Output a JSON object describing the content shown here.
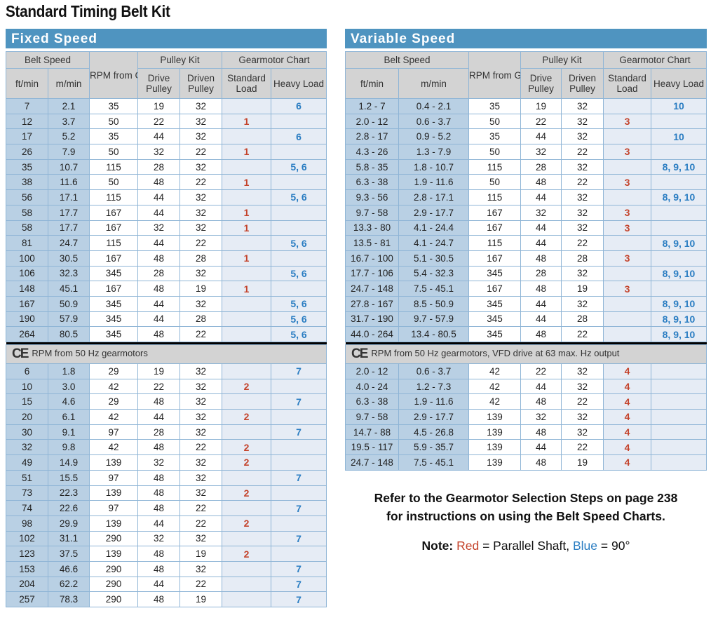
{
  "title": "Standard Timing Belt Kit",
  "colors": {
    "header": "#4f94c0",
    "red": "#c4432b",
    "blue": "#2a7dc2"
  },
  "headers": {
    "belt_speed": "Belt Speed",
    "rpm": "RPM from Gearmotor",
    "pulley_kit": "Pulley Kit",
    "gearmotor_chart": "Gearmotor Chart",
    "ft": "ft/min",
    "m": "m/min",
    "drive": "Drive Pulley",
    "driven": "Driven Pulley",
    "standard": "Standard Load",
    "heavy": "Heavy Load"
  },
  "ce_mark": "CE",
  "fixed": {
    "title": "Fixed Speed",
    "rows": [
      [
        "7",
        "2.1",
        "35",
        "19",
        "32",
        "",
        "6"
      ],
      [
        "12",
        "3.7",
        "50",
        "22",
        "32",
        "1",
        ""
      ],
      [
        "17",
        "5.2",
        "35",
        "44",
        "32",
        "",
        "6"
      ],
      [
        "26",
        "7.9",
        "50",
        "32",
        "22",
        "1",
        ""
      ],
      [
        "35",
        "10.7",
        "115",
        "28",
        "32",
        "",
        "5, 6"
      ],
      [
        "38",
        "11.6",
        "50",
        "48",
        "22",
        "1",
        ""
      ],
      [
        "56",
        "17.1",
        "115",
        "44",
        "32",
        "",
        "5, 6"
      ],
      [
        "58",
        "17.7",
        "167",
        "44",
        "32",
        "1",
        ""
      ],
      [
        "58",
        "17.7",
        "167",
        "32",
        "32",
        "1",
        ""
      ],
      [
        "81",
        "24.7",
        "115",
        "44",
        "22",
        "",
        "5, 6"
      ],
      [
        "100",
        "30.5",
        "167",
        "48",
        "28",
        "1",
        ""
      ],
      [
        "106",
        "32.3",
        "345",
        "28",
        "32",
        "",
        "5, 6"
      ],
      [
        "148",
        "45.1",
        "167",
        "48",
        "19",
        "1",
        ""
      ],
      [
        "167",
        "50.9",
        "345",
        "44",
        "32",
        "",
        "5, 6"
      ],
      [
        "190",
        "57.9",
        "345",
        "44",
        "28",
        "",
        "5, 6"
      ],
      [
        "264",
        "80.5",
        "345",
        "48",
        "22",
        "",
        "5, 6"
      ]
    ],
    "ce_label": "RPM from 50 Hz gearmotors",
    "ce_rows": [
      [
        "6",
        "1.8",
        "29",
        "19",
        "32",
        "",
        "7"
      ],
      [
        "10",
        "3.0",
        "42",
        "22",
        "32",
        "2",
        ""
      ],
      [
        "15",
        "4.6",
        "29",
        "48",
        "32",
        "",
        "7"
      ],
      [
        "20",
        "6.1",
        "42",
        "44",
        "32",
        "2",
        ""
      ],
      [
        "30",
        "9.1",
        "97",
        "28",
        "32",
        "",
        "7"
      ],
      [
        "32",
        "9.8",
        "42",
        "48",
        "22",
        "2",
        ""
      ],
      [
        "49",
        "14.9",
        "139",
        "32",
        "32",
        "2",
        ""
      ],
      [
        "51",
        "15.5",
        "97",
        "48",
        "32",
        "",
        "7"
      ],
      [
        "73",
        "22.3",
        "139",
        "48",
        "32",
        "2",
        ""
      ],
      [
        "74",
        "22.6",
        "97",
        "48",
        "22",
        "",
        "7"
      ],
      [
        "98",
        "29.9",
        "139",
        "44",
        "22",
        "2",
        ""
      ],
      [
        "102",
        "31.1",
        "290",
        "32",
        "32",
        "",
        "7"
      ],
      [
        "123",
        "37.5",
        "139",
        "48",
        "19",
        "2",
        ""
      ],
      [
        "153",
        "46.6",
        "290",
        "48",
        "32",
        "",
        "7"
      ],
      [
        "204",
        "62.2",
        "290",
        "44",
        "22",
        "",
        "7"
      ],
      [
        "257",
        "78.3",
        "290",
        "48",
        "19",
        "",
        "7"
      ]
    ]
  },
  "variable": {
    "title": "Variable Speed",
    "rows": [
      [
        "1.2 - 7",
        "0.4 - 2.1",
        "35",
        "19",
        "32",
        "",
        "10"
      ],
      [
        "2.0 - 12",
        "0.6 - 3.7",
        "50",
        "22",
        "32",
        "3",
        ""
      ],
      [
        "2.8 - 17",
        "0.9 - 5.2",
        "35",
        "44",
        "32",
        "",
        "10"
      ],
      [
        "4.3 - 26",
        "1.3 - 7.9",
        "50",
        "32",
        "22",
        "3",
        ""
      ],
      [
        "5.8 - 35",
        "1.8 - 10.7",
        "115",
        "28",
        "32",
        "",
        "8, 9, 10"
      ],
      [
        "6.3 - 38",
        "1.9 - 11.6",
        "50",
        "48",
        "22",
        "3",
        ""
      ],
      [
        "9.3 - 56",
        "2.8 - 17.1",
        "115",
        "44",
        "32",
        "",
        "8, 9, 10"
      ],
      [
        "9.7 - 58",
        "2.9 - 17.7",
        "167",
        "32",
        "32",
        "3",
        ""
      ],
      [
        "13.3 - 80",
        "4.1 - 24.4",
        "167",
        "44",
        "32",
        "3",
        ""
      ],
      [
        "13.5 - 81",
        "4.1 - 24.7",
        "115",
        "44",
        "22",
        "",
        "8, 9, 10"
      ],
      [
        "16.7 - 100",
        "5.1 - 30.5",
        "167",
        "48",
        "28",
        "3",
        ""
      ],
      [
        "17.7 - 106",
        "5.4 - 32.3",
        "345",
        "28",
        "32",
        "",
        "8, 9, 10"
      ],
      [
        "24.7 - 148",
        "7.5 - 45.1",
        "167",
        "48",
        "19",
        "3",
        ""
      ],
      [
        "27.8 - 167",
        "8.5 - 50.9",
        "345",
        "44",
        "32",
        "",
        "8, 9, 10"
      ],
      [
        "31.7 - 190",
        "9.7 - 57.9",
        "345",
        "44",
        "28",
        "",
        "8, 9, 10"
      ],
      [
        "44.0 - 264",
        "13.4 - 80.5",
        "345",
        "48",
        "22",
        "",
        "8, 9, 10"
      ]
    ],
    "ce_label": "RPM from 50 Hz gearmotors, VFD drive at 63 max. Hz output",
    "ce_rows": [
      [
        "2.0 - 12",
        "0.6 - 3.7",
        "42",
        "22",
        "32",
        "4",
        ""
      ],
      [
        "4.0 - 24",
        "1.2 - 7.3",
        "42",
        "44",
        "32",
        "4",
        ""
      ],
      [
        "6.3 - 38",
        "1.9 - 11.6",
        "42",
        "48",
        "22",
        "4",
        ""
      ],
      [
        "9.7 - 58",
        "2.9 - 17.7",
        "139",
        "32",
        "32",
        "4",
        ""
      ],
      [
        "14.7 - 88",
        "4.5 - 26.8",
        "139",
        "48",
        "32",
        "4",
        ""
      ],
      [
        "19.5 - 117",
        "5.9 - 35.7",
        "139",
        "44",
        "22",
        "4",
        ""
      ],
      [
        "24.7 - 148",
        "7.5 - 45.1",
        "139",
        "48",
        "19",
        "4",
        ""
      ]
    ]
  },
  "notes": {
    "refer_line1": "Refer to the Gearmotor Selection Steps on page 238",
    "refer_line2": "for instructions on using the Belt Speed Charts.",
    "note_label": "Note:",
    "red_word": "Red",
    "red_meaning": " = Parallel Shaft, ",
    "blue_word": "Blue",
    "blue_meaning": " = 90°"
  }
}
